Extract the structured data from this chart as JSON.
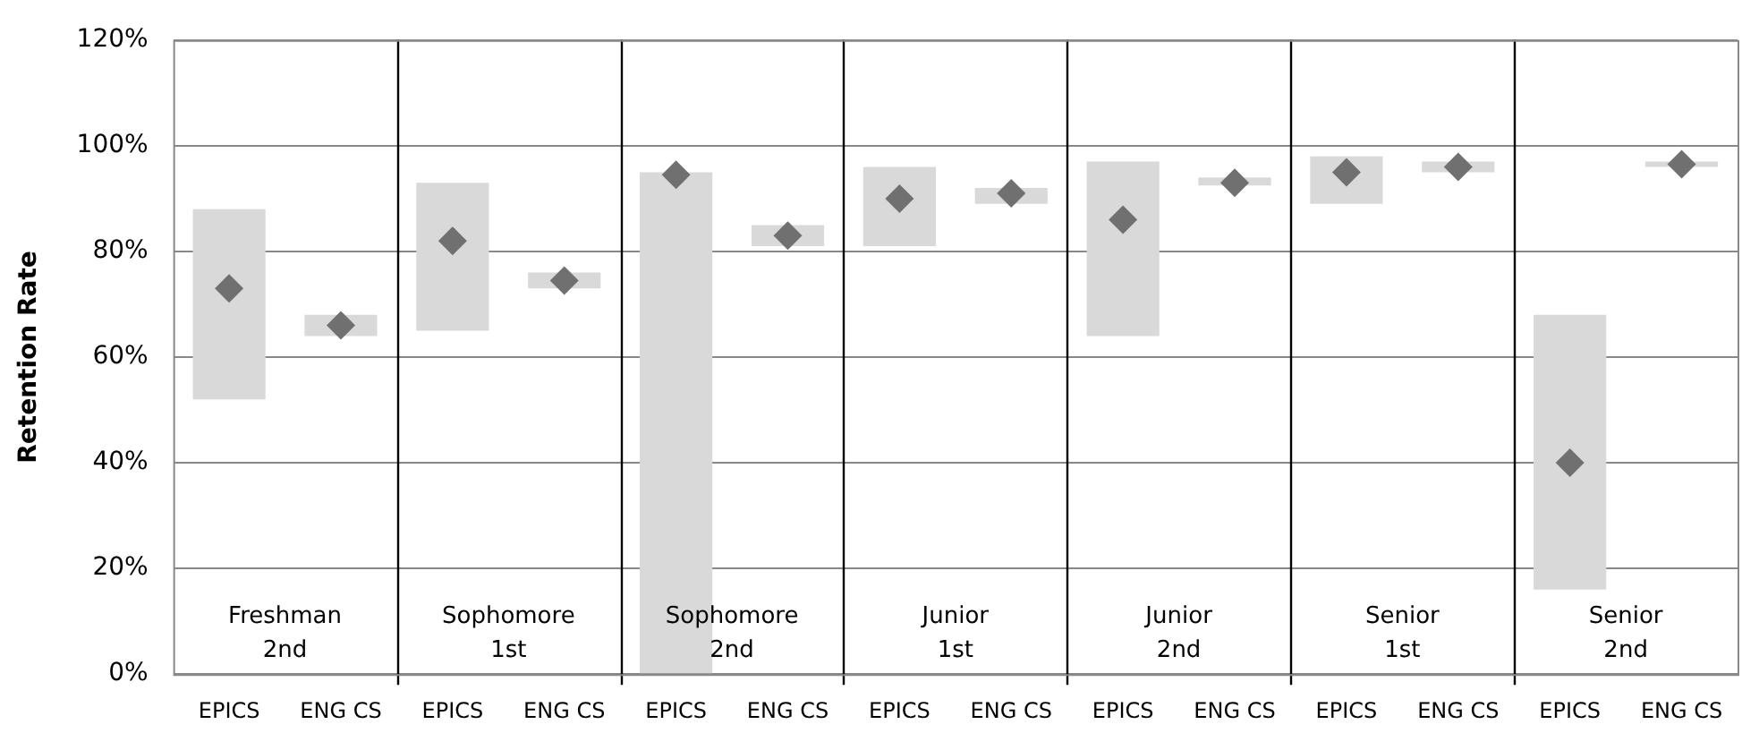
{
  "chart_data": {
    "type": "bar",
    "ylabel": "Retention Rate",
    "categories": [
      "EPICS",
      "ENG CS",
      "EPICS",
      "ENG CS",
      "EPICS",
      "ENG CS",
      "EPICS",
      "ENG CS",
      "EPICS",
      "ENG CS",
      "EPICS",
      "ENG CS",
      "EPICS",
      "ENG CS"
    ],
    "series": [
      {
        "color": "#d9d9d9",
        "base": [
          52,
          64,
          65,
          73,
          0,
          81,
          81,
          89,
          64,
          92.5,
          89,
          95,
          16,
          96
        ],
        "values": [
          36,
          4,
          28,
          3,
          95,
          4,
          15,
          3,
          33,
          1.5,
          9,
          2,
          52,
          1
        ]
      },
      {
        "type": "scatter",
        "color": "#707070",
        "marker": "diamond",
        "values": [
          73,
          66,
          82,
          74.5,
          94.5,
          83,
          90,
          91,
          86,
          93,
          95,
          96,
          40,
          96.5
        ]
      }
    ],
    "ylim": [
      0,
      120
    ],
    "yticks": [
      {
        "value": 0,
        "label": "0%"
      },
      {
        "value": 20,
        "label": "20%"
      },
      {
        "value": 40,
        "label": "40%"
      },
      {
        "value": 60,
        "label": "60%"
      },
      {
        "value": 80,
        "label": "80%"
      },
      {
        "value": 100,
        "label": "100%"
      },
      {
        "value": 120,
        "label": "120%"
      }
    ],
    "grid": "y",
    "legend": false,
    "annotations": [
      "Freshman\n2nd",
      "Sophomore\n1st",
      "Sophomore\n2nd",
      "Junior\n1st",
      "Junior\n2nd",
      "Senior\n1st",
      "Senior\n2nd"
    ]
  }
}
